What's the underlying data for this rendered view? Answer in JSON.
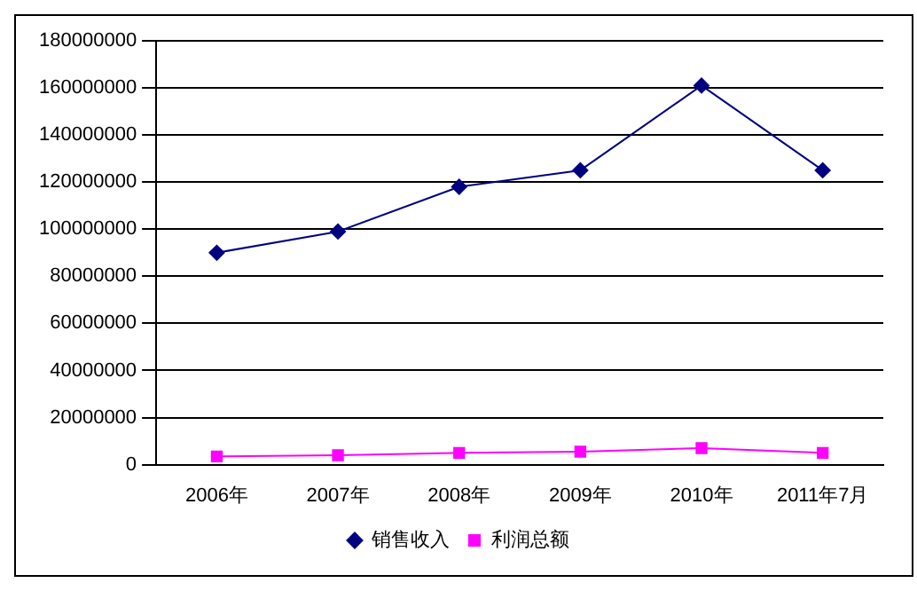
{
  "chart_data": {
    "type": "line",
    "categories": [
      "2006年",
      "2007年",
      "2008年",
      "2009年",
      "2010年",
      "2011年7月"
    ],
    "series": [
      {
        "name": "销售收入",
        "color": "#000080",
        "values": [
          90000000,
          99000000,
          118000000,
          125000000,
          161000000,
          125000000
        ],
        "marker": "diamond"
      },
      {
        "name": "利润总额",
        "color": "#ff00ff",
        "values": [
          3500000,
          4000000,
          5000000,
          5500000,
          7000000,
          5000000
        ],
        "marker": "square"
      }
    ],
    "ylim": [
      0,
      180000000
    ],
    "yticks": [
      0,
      20000000,
      40000000,
      60000000,
      80000000,
      100000000,
      120000000,
      140000000,
      160000000,
      180000000
    ],
    "grid": "y",
    "legend": "bottom",
    "line_style": "solid"
  }
}
